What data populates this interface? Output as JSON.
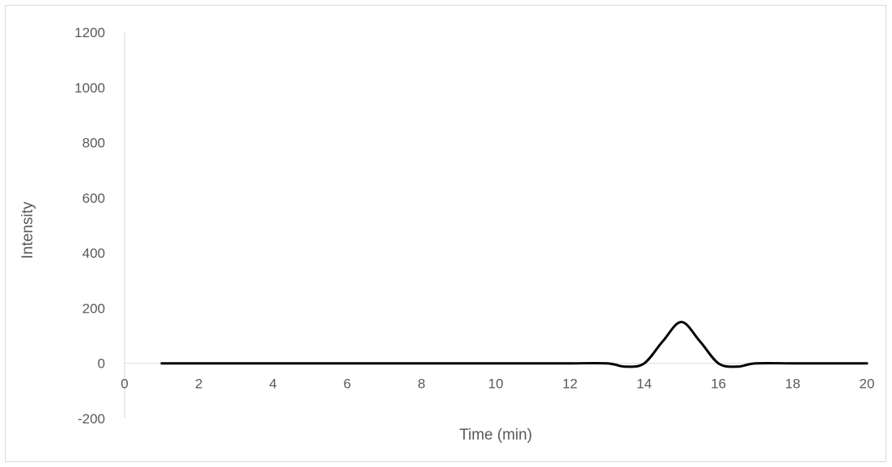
{
  "chart_data": {
    "type": "line",
    "title": "",
    "xlabel": "Time (min)",
    "ylabel": "Intensity",
    "xlim": [
      0,
      20
    ],
    "ylim": [
      -200,
      1200
    ],
    "x_ticks": [
      0,
      2,
      4,
      6,
      8,
      10,
      12,
      14,
      16,
      18,
      20
    ],
    "y_ticks": [
      -200,
      0,
      200,
      400,
      600,
      800,
      1000,
      1200
    ],
    "grid": false,
    "legend": "none",
    "series": [
      {
        "color": "#000000",
        "x": [
          1,
          2,
          3,
          4,
          5,
          6,
          7,
          8,
          9,
          10,
          11,
          12,
          13,
          13.5,
          14,
          14.5,
          15,
          15.5,
          16,
          16.5,
          17,
          18,
          19,
          20
        ],
        "y": [
          0,
          0,
          0,
          0,
          0,
          0,
          0,
          0,
          0,
          0,
          0,
          0,
          0,
          -12,
          0,
          80,
          150,
          80,
          0,
          -12,
          0,
          0,
          0,
          0
        ]
      }
    ]
  }
}
